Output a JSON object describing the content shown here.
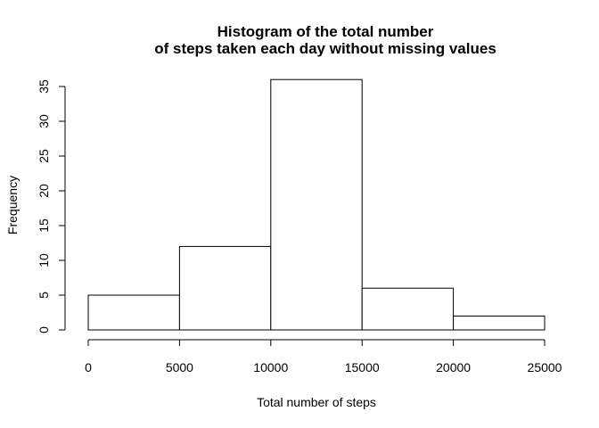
{
  "chart_data": {
    "type": "bar",
    "title_lines": [
      "Histogram of the total number",
      "of steps taken each day without missing values"
    ],
    "xlabel": "Total number of steps",
    "ylabel": "Frequency",
    "bins": [
      {
        "from": 0,
        "to": 5000,
        "count": 5
      },
      {
        "from": 5000,
        "to": 10000,
        "count": 12
      },
      {
        "from": 10000,
        "to": 15000,
        "count": 36
      },
      {
        "from": 15000,
        "to": 20000,
        "count": 6
      },
      {
        "from": 20000,
        "to": 25000,
        "count": 2
      }
    ],
    "x_ticks": [
      "0",
      "5000",
      "10000",
      "15000",
      "20000",
      "25000"
    ],
    "y_ticks": [
      "0",
      "5",
      "10",
      "15",
      "20",
      "25",
      "30",
      "35"
    ],
    "xlim": [
      0,
      25000
    ],
    "ylim": [
      0,
      36
    ],
    "grid": false,
    "legend": "none"
  }
}
